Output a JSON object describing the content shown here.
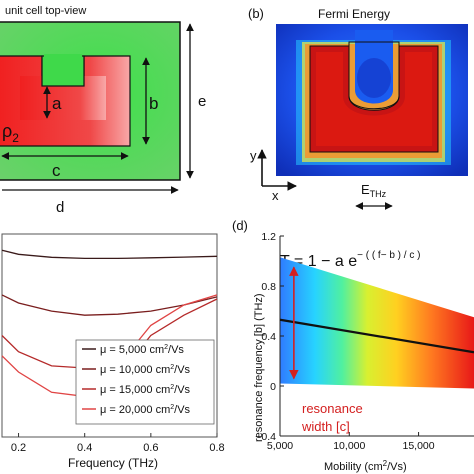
{
  "panel_a": {
    "title": "unit cell top-view",
    "label_a": "a",
    "label_b": "b",
    "label_c": "c",
    "label_d": "d",
    "label_e": "e",
    "label_rho": "ρ",
    "label_rho_sub": "2",
    "colors": {
      "substrate": "#2ecc40",
      "resonator": "#ee1f24"
    }
  },
  "panel_b": {
    "tag": "(b)",
    "title": "Fermi Energy",
    "axis_y": "y",
    "axis_x": "x",
    "field_label": "E",
    "field_sub": "THz"
  },
  "panel_c": {
    "xlabel": "Frequency (THz)",
    "xticks": [
      "0.2",
      "0.4",
      "0.6",
      "0.8"
    ],
    "legend": [
      {
        "mu": "μ",
        "text": " = 5,000 cm",
        "sup": "2",
        "unit": "/Vs",
        "color": "#3a1a1a"
      },
      {
        "mu": "μ",
        "text": " = 10,000 cm",
        "sup": "2",
        "unit": "/Vs",
        "color": "#7a1e1e"
      },
      {
        "mu": "μ",
        "text": " = 15,000 cm",
        "sup": "2",
        "unit": "/Vs",
        "color": "#b52a2a"
      },
      {
        "mu": "μ",
        "text": " = 20,000 cm",
        "sup": "2",
        "unit": "/Vs",
        "color": "#e04545"
      }
    ]
  },
  "panel_d": {
    "tag": "(d)",
    "formula": "T = 1 − a e",
    "formula_exp": "− ( ( f− b ) / c )",
    "ylabel": "resonance frequency [b] (THz)",
    "xlabel_pre": "Mobility (cm",
    "xlabel_sup": "2",
    "xlabel_post": "/Vs)",
    "annotation_line1": "resonance",
    "annotation_line2": "width [c]",
    "annotation_color": "#d42020"
  },
  "chart_data": [
    {
      "type": "line",
      "xlabel": "Frequency (THz)",
      "ylabel": "",
      "xlim": [
        0.15,
        0.8
      ],
      "ylim": [
        0,
        1
      ],
      "xticks": [
        0.2,
        0.4,
        0.6,
        0.8
      ],
      "series": [
        {
          "name": "μ = 5,000 cm2/Vs",
          "x": [
            0.15,
            0.2,
            0.3,
            0.4,
            0.5,
            0.6,
            0.7,
            0.8
          ],
          "y": [
            0.92,
            0.9,
            0.885,
            0.88,
            0.88,
            0.883,
            0.886,
            0.89
          ]
        },
        {
          "name": "μ = 10,000 cm2/Vs",
          "x": [
            0.15,
            0.2,
            0.3,
            0.4,
            0.5,
            0.6,
            0.7,
            0.8
          ],
          "y": [
            0.7,
            0.66,
            0.62,
            0.6,
            0.605,
            0.62,
            0.65,
            0.69
          ]
        },
        {
          "name": "μ = 15,000 cm2/Vs",
          "x": [
            0.15,
            0.2,
            0.3,
            0.4,
            0.5,
            0.55,
            0.6,
            0.7,
            0.8
          ],
          "y": [
            0.5,
            0.42,
            0.35,
            0.34,
            0.36,
            0.4,
            0.5,
            0.6,
            0.68
          ]
        },
        {
          "name": "μ = 20,000 cm2/Vs",
          "x": [
            0.15,
            0.2,
            0.3,
            0.4,
            0.45,
            0.5,
            0.55,
            0.6,
            0.7,
            0.8
          ],
          "y": [
            0.4,
            0.32,
            0.22,
            0.2,
            0.25,
            0.35,
            0.45,
            0.55,
            0.65,
            0.7
          ]
        }
      ]
    },
    {
      "type": "line",
      "xlabel": "Mobility (cm2/Vs)",
      "ylabel": "resonance frequency [b] (THz)",
      "xlim": [
        5000,
        19000
      ],
      "ylim": [
        -0.4,
        1.2
      ],
      "xticks": [
        5000,
        10000,
        15000
      ],
      "yticks": [
        -0.4,
        0,
        0.4,
        0.8,
        1.2
      ],
      "series": [
        {
          "x": [
            5000,
            19000
          ],
          "y": [
            0.53,
            0.27
          ]
        }
      ],
      "band": {
        "x": [
          5000,
          19000
        ],
        "upper": [
          1.03,
          0.55
        ],
        "lower": [
          0.02,
          -0.02
        ]
      }
    }
  ]
}
